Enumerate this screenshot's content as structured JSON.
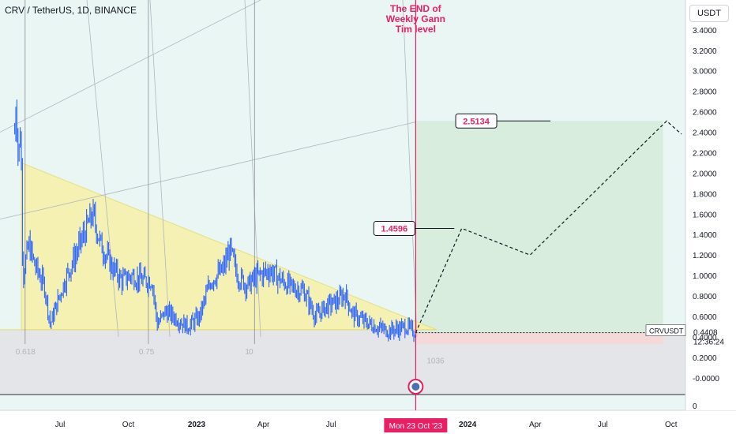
{
  "header": {
    "symbol": "CRV / TetherUS, 1D, BINANCE",
    "currency": "USDT"
  },
  "annotation": {
    "lines": [
      "The END of",
      "Weekly Gann",
      "Tim level"
    ],
    "color": "#e91e63"
  },
  "labels": {
    "target_mid": "1.4596",
    "target_high": "2.5134",
    "fib_0618": "0.618",
    "fib_075": "0.75",
    "fib_1": "1",
    "fib_0": "0",
    "bars_count": "1036"
  },
  "ticker": {
    "name": "CRVUSDT",
    "price": "0.4408",
    "countdown": "12:36:24"
  },
  "time_marker": "Mon 23 Oct '23",
  "colors": {
    "candle": "#2962ff",
    "triangle": "#f6f1a8",
    "target_zone": "#d6ecdc",
    "stop_zone": "#f6d7d7",
    "marker": "#e91e63",
    "grid_bg": "#e9f6f4"
  },
  "chart_data": {
    "type": "candlestick",
    "title": "CRV / TetherUS, 1D, BINANCE",
    "ylim": [
      -0.1,
      3.6
    ],
    "y_ticks": [
      "3.4000",
      "3.2000",
      "3.0000",
      "2.8000",
      "2.6000",
      "2.4000",
      "2.2000",
      "2.0000",
      "1.8000",
      "1.6000",
      "1.4000",
      "1.2000",
      "1.0000",
      "0.8000",
      "0.6000",
      "0.4000",
      "0.2000",
      "-0.0000"
    ],
    "lower_pane_tick": "0",
    "x_ticks": [
      "Jul",
      "Oct",
      "2023",
      "Apr",
      "Jul",
      "2024",
      "Apr",
      "Jul",
      "Oct"
    ],
    "x_tick_bold": [
      "2023",
      "2024"
    ],
    "price_path": [
      [
        "2022-05-01",
        2.4
      ],
      [
        "2022-05-03",
        2.75
      ],
      [
        "2022-05-06",
        2.1
      ],
      [
        "2022-05-09",
        2.5
      ],
      [
        "2022-05-12",
        1.0
      ],
      [
        "2022-05-20",
        1.3
      ],
      [
        "2022-05-28",
        1.1
      ],
      [
        "2022-06-10",
        0.9
      ],
      [
        "2022-06-18",
        0.52
      ],
      [
        "2022-06-28",
        0.75
      ],
      [
        "2022-07-10",
        1.0
      ],
      [
        "2022-07-22",
        1.2
      ],
      [
        "2022-08-05",
        1.45
      ],
      [
        "2022-08-14",
        1.6
      ],
      [
        "2022-08-25",
        1.3
      ],
      [
        "2022-09-08",
        1.1
      ],
      [
        "2022-09-22",
        0.95
      ],
      [
        "2022-10-05",
        1.0
      ],
      [
        "2022-10-20",
        0.95
      ],
      [
        "2022-11-02",
        0.95
      ],
      [
        "2022-11-09",
        0.52
      ],
      [
        "2022-11-20",
        0.65
      ],
      [
        "2022-12-01",
        0.6
      ],
      [
        "2022-12-20",
        0.5
      ],
      [
        "2023-01-05",
        0.6
      ],
      [
        "2023-01-20",
        0.95
      ],
      [
        "2023-02-05",
        1.05
      ],
      [
        "2023-02-15",
        1.25
      ],
      [
        "2023-02-25",
        1.0
      ],
      [
        "2023-03-10",
        0.9
      ],
      [
        "2023-03-25",
        1.0
      ],
      [
        "2023-04-10",
        1.05
      ],
      [
        "2023-04-25",
        0.95
      ],
      [
        "2023-05-10",
        0.88
      ],
      [
        "2023-05-25",
        0.85
      ],
      [
        "2023-06-10",
        0.6
      ],
      [
        "2023-06-25",
        0.7
      ],
      [
        "2023-07-10",
        0.75
      ],
      [
        "2023-07-20",
        0.82
      ],
      [
        "2023-07-30",
        0.62
      ],
      [
        "2023-08-15",
        0.55
      ],
      [
        "2023-08-30",
        0.5
      ],
      [
        "2023-09-15",
        0.46
      ],
      [
        "2023-09-30",
        0.48
      ],
      [
        "2023-10-10",
        0.5
      ],
      [
        "2023-10-23",
        0.44
      ]
    ],
    "projection": [
      [
        "2023-10-23",
        0.44
      ],
      [
        "2023-12-24",
        1.46
      ],
      [
        "2024-03-25",
        1.2
      ],
      [
        "2024-09-25",
        2.51
      ],
      [
        "2024-10-15",
        2.38
      ]
    ],
    "triangle": [
      [
        "2022-05-10",
        2.1
      ],
      [
        "2023-11-20",
        0.47
      ],
      [
        "2022-05-10",
        0.47
      ]
    ],
    "target_zone": {
      "x_start": "2023-10-23",
      "x_end": "2024-09-20",
      "y_low": 0.44,
      "y_high": 2.51
    },
    "stop_zone": {
      "x_start": "2023-10-23",
      "x_end": "2024-09-20",
      "y_low": 0.33,
      "y_high": 0.44
    },
    "vertical_lines": [
      "2022-05-15",
      "2022-10-28",
      "2023-03-20",
      "2023-10-23"
    ],
    "fib_time_labels": [
      [
        "2022-05-15",
        "0.618"
      ],
      [
        "2022-10-28",
        "0.75"
      ],
      [
        "2023-03-20",
        "1"
      ],
      [
        "2023-03-25",
        "0"
      ]
    ],
    "callouts": [
      [
        "2023-11-10",
        1.46,
        "1.4596"
      ],
      [
        "2024-03-10",
        2.51,
        "2.5134"
      ]
    ],
    "current_price": 0.4408,
    "marker_date": "2023-10-23"
  }
}
